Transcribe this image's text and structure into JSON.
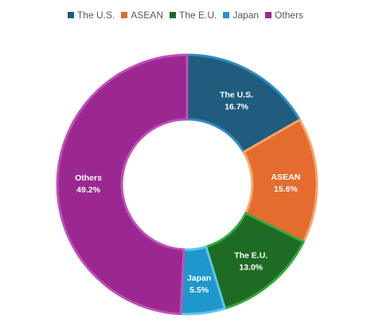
{
  "chart_data": {
    "type": "pie",
    "variant": "donut",
    "legend_position": "top",
    "slices": [
      {
        "name": "The U.S.",
        "value": 16.7,
        "label": "16.7%",
        "color": "#1F5C7E",
        "border": "#2E8CC0"
      },
      {
        "name": "ASEAN",
        "value": 15.6,
        "label": "15.6%",
        "color": "#E46C2E",
        "border": "#F5A46A"
      },
      {
        "name": "The E.U.",
        "value": 13.0,
        "label": "13.0%",
        "color": "#1E6B24",
        "border": "#34A83C"
      },
      {
        "name": "Japan",
        "value": 5.5,
        "label": "5.5%",
        "color": "#1E97CC",
        "border": "#60C4EE"
      },
      {
        "name": "Others",
        "value": 49.2,
        "label": "49.2%",
        "color": "#9A2890",
        "border": "#C050B6"
      }
    ]
  }
}
